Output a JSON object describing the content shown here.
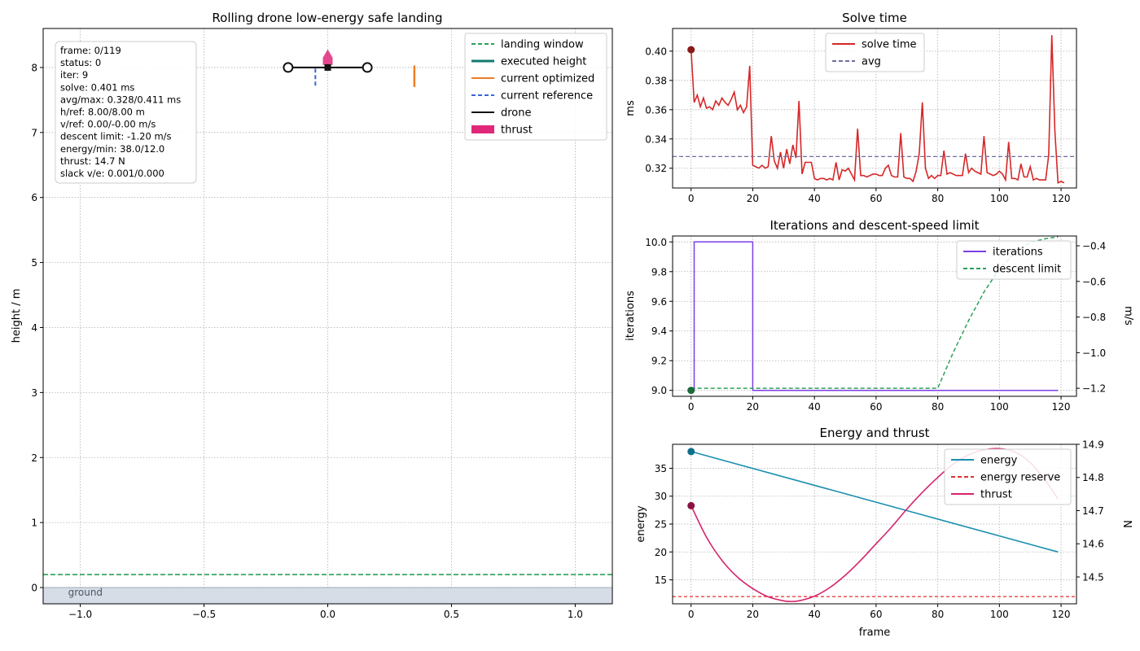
{
  "chart_data": [
    {
      "type": "line",
      "title": "Rolling drone low-energy safe landing",
      "xlabel": "",
      "ylabel": "height / m",
      "xlim": [
        -1.15,
        1.15
      ],
      "ylim": [
        -0.25,
        8.6
      ],
      "xticks": [
        -1.0,
        -0.5,
        0.0,
        0.5,
        1.0
      ],
      "xtick_labels": [
        "−1.0",
        "−0.5",
        "0.0",
        "0.5",
        "1.0"
      ],
      "yticks": [
        0,
        1,
        2,
        3,
        4,
        5,
        6,
        7,
        8
      ],
      "grid": true,
      "legend_placement": "top-right",
      "legend": [
        {
          "label": "landing window",
          "color": "#2ca05a",
          "style": "dashed"
        },
        {
          "label": "executed height",
          "color": "#127a6e",
          "style": "solid-thick"
        },
        {
          "label": "current optimized",
          "color": "#f07c22",
          "style": "solid"
        },
        {
          "label": "current reference",
          "color": "#3a66d6",
          "style": "dashed"
        },
        {
          "label": "drone",
          "color": "#111111",
          "style": "solid"
        },
        {
          "label": "thrust",
          "color": "#e0287a",
          "style": "patch"
        }
      ],
      "landing_window_height": 0.2,
      "ground_label": "ground",
      "drone": {
        "x": 0.0,
        "y": 8.0,
        "half_span": 0.16,
        "thrust_arrow_height": 0.28
      },
      "current_optimized_segment": {
        "x": 0.35,
        "y": [
          7.7,
          8.03
        ]
      },
      "current_reference_segment": {
        "x": -0.05,
        "y": [
          7.72,
          8.0
        ]
      },
      "info_lines": [
        "frame: 0/119",
        "status: 0",
        "iter: 9",
        "solve: 0.401 ms",
        "avg/max: 0.328/0.411 ms",
        "h/ref: 8.00/8.00 m",
        "v/ref: 0.00/-0.00 m/s",
        "descent limit: -1.20 m/s",
        "energy/min: 38.0/12.0",
        "thrust: 14.7 N",
        "slack v/e: 0.001/0.000"
      ]
    },
    {
      "type": "line",
      "title": "Solve time",
      "xlabel": "",
      "ylabel": "ms",
      "xlim": [
        -6,
        125
      ],
      "ylim": [
        0.3065,
        0.4155
      ],
      "xticks": [
        0,
        20,
        40,
        60,
        80,
        100,
        120
      ],
      "yticks": [
        0.32,
        0.34,
        0.36,
        0.38,
        0.4
      ],
      "ytick_labels": [
        "0.32",
        "0.34",
        "0.36",
        "0.38",
        "0.40"
      ],
      "grid": true,
      "legend_placement": "top-center",
      "series": [
        {
          "name": "solve time",
          "color": "#d62728",
          "x_start": 0,
          "values": [
            0.401,
            0.365,
            0.37,
            0.362,
            0.368,
            0.361,
            0.362,
            0.36,
            0.366,
            0.363,
            0.368,
            0.365,
            0.363,
            0.367,
            0.372,
            0.36,
            0.363,
            0.358,
            0.362,
            0.39,
            0.322,
            0.321,
            0.32,
            0.322,
            0.32,
            0.321,
            0.342,
            0.325,
            0.32,
            0.331,
            0.32,
            0.333,
            0.323,
            0.336,
            0.327,
            0.366,
            0.316,
            0.324,
            0.324,
            0.324,
            0.313,
            0.312,
            0.313,
            0.313,
            0.312,
            0.313,
            0.312,
            0.324,
            0.312,
            0.319,
            0.318,
            0.32,
            0.316,
            0.312,
            0.347,
            0.315,
            0.315,
            0.314,
            0.315,
            0.316,
            0.316,
            0.315,
            0.315,
            0.32,
            0.322,
            0.315,
            0.314,
            0.314,
            0.344,
            0.314,
            0.313,
            0.313,
            0.311,
            0.318,
            0.33,
            0.365,
            0.32,
            0.313,
            0.315,
            0.313,
            0.315,
            0.315,
            0.332,
            0.316,
            0.317,
            0.316,
            0.315,
            0.315,
            0.315,
            0.33,
            0.317,
            0.32,
            0.318,
            0.317,
            0.316,
            0.342,
            0.317,
            0.316,
            0.315,
            0.316,
            0.318,
            0.316,
            0.312,
            0.338,
            0.313,
            0.313,
            0.312,
            0.323,
            0.314,
            0.314,
            0.321,
            0.312,
            0.313,
            0.312,
            0.312,
            0.312,
            0.329,
            0.411,
            0.345,
            0.31,
            0.311,
            0.31
          ]
        },
        {
          "name": "avg",
          "color": "#6e6e9e",
          "style": "dashed",
          "value": 0.328
        }
      ],
      "current_marker": {
        "x": 0,
        "y": 0.401,
        "color": "#8b1a1a"
      }
    },
    {
      "type": "line",
      "title": "Iterations and descent-speed limit",
      "xlabel": "",
      "ylabel": "iterations",
      "y2label": "m/s",
      "xlim": [
        -6,
        125
      ],
      "ylim": [
        8.96,
        10.04
      ],
      "y2lim": [
        -1.245,
        -0.345
      ],
      "xticks": [
        0,
        20,
        40,
        60,
        80,
        100,
        120
      ],
      "yticks": [
        9.0,
        9.2,
        9.4,
        9.6,
        9.8,
        10.0
      ],
      "ytick_labels": [
        "9.0",
        "9.2",
        "9.4",
        "9.6",
        "9.8",
        "10.0"
      ],
      "y2ticks": [
        -1.2,
        -1.0,
        -0.8,
        -0.6,
        -0.4
      ],
      "y2tick_labels": [
        "−1.2",
        "−1.0",
        "−0.8",
        "−0.6",
        "−0.4"
      ],
      "grid": true,
      "legend_placement": "top-right",
      "series": [
        {
          "name": "iterations",
          "color": "#7b3fe4",
          "style": "step",
          "x": [
            0,
            1,
            1,
            20,
            20,
            119
          ],
          "y": [
            9,
            9,
            10,
            10,
            9,
            9
          ]
        },
        {
          "name": "descent limit",
          "color": "#2ca05a",
          "style": "dashed",
          "axis": "y2",
          "x": [
            0,
            80,
            85,
            90,
            95,
            100,
            105,
            110,
            115,
            119
          ],
          "y": [
            -1.2,
            -1.2,
            -1.0,
            -0.82,
            -0.66,
            -0.53,
            -0.44,
            -0.38,
            -0.36,
            -0.35
          ]
        }
      ],
      "current_marker": {
        "x": 0,
        "y": 9.0,
        "color": "#1a6b3a"
      }
    },
    {
      "type": "line",
      "title": "Energy and thrust",
      "xlabel": "frame",
      "ylabel": "energy",
      "y2label": "N",
      "xlim": [
        -6,
        125
      ],
      "ylim": [
        10.7,
        39.3
      ],
      "y2lim": [
        14.419,
        14.9
      ],
      "xticks": [
        0,
        20,
        40,
        60,
        80,
        100,
        120
      ],
      "yticks": [
        15,
        20,
        25,
        30,
        35
      ],
      "y2ticks": [
        14.5,
        14.6,
        14.7,
        14.8,
        14.9
      ],
      "y2tick_labels": [
        "14.5",
        "14.6",
        "14.7",
        "14.8",
        "14.9"
      ],
      "grid": true,
      "legend_placement": "top-right",
      "series": [
        {
          "name": "energy",
          "color": "#1a8fb0",
          "x": [
            0,
            119
          ],
          "y": [
            38.0,
            20.0
          ]
        },
        {
          "name": "energy reserve",
          "color": "#e03030",
          "style": "dashed",
          "value": 12.0
        },
        {
          "name": "thrust",
          "color": "#d6246e",
          "axis": "y2",
          "x": [
            0,
            5,
            10,
            15,
            20,
            25,
            30,
            32,
            35,
            40,
            45,
            50,
            55,
            60,
            65,
            70,
            75,
            80,
            85,
            90,
            95,
            100,
            105,
            110,
            115,
            119
          ],
          "y": [
            14.715,
            14.62,
            14.55,
            14.5,
            14.465,
            14.44,
            14.428,
            14.426,
            14.428,
            14.442,
            14.468,
            14.505,
            14.55,
            14.6,
            14.65,
            14.705,
            14.755,
            14.8,
            14.84,
            14.868,
            14.883,
            14.887,
            14.877,
            14.845,
            14.79,
            14.735
          ]
        }
      ],
      "current_markers": [
        {
          "x": 0,
          "y": 38.0,
          "axis": "y",
          "color": "#0d6f8a"
        },
        {
          "x": 0,
          "y": 14.715,
          "axis": "y2",
          "color": "#8b1245"
        }
      ]
    }
  ]
}
